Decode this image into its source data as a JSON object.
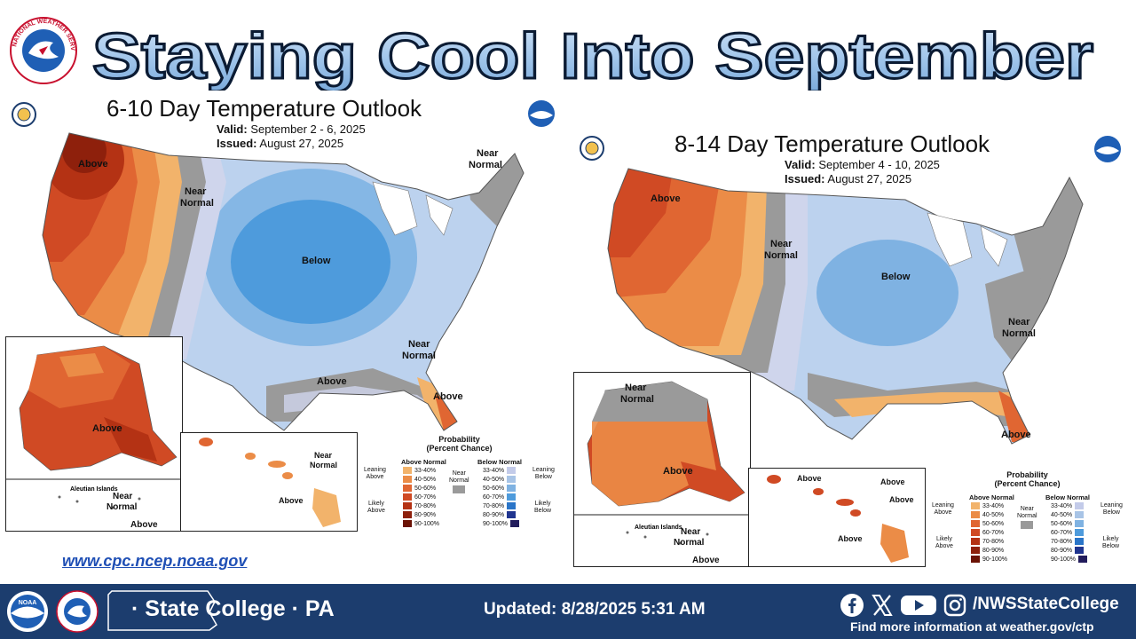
{
  "header": {
    "title": "Staying Cool Into September",
    "nws_logo_text": "NATIONAL WEATHER SERVICE"
  },
  "outlooks": [
    {
      "title": "6-10 Day Temperature Outlook",
      "valid_label": "Valid:",
      "valid": "September 2 - 6, 2025",
      "issued_label": "Issued:",
      "issued": "August 27, 2025",
      "labels": {
        "above_nw": "Above",
        "near_west": "Near",
        "near_west2": "Normal",
        "below_central": "Below",
        "near_ne": "Near",
        "near_ne2": "Normal",
        "near_se": "Near",
        "near_se2": "Normal",
        "above_gulf": "Above",
        "above_fl": "Above",
        "ak_above": "Above",
        "aleutian": "Aleutian Islands",
        "ak_near": "Near",
        "ak_near2": "Normal",
        "ak_above2": "Above",
        "hi_near": "Near",
        "hi_near2": "Normal",
        "hi_above": "Above"
      }
    },
    {
      "title": "8-14 Day Temperature Outlook",
      "valid_label": "Valid:",
      "valid": "September 4 - 10, 2025",
      "issued_label": "Issued:",
      "issued": "August 27, 2025",
      "labels": {
        "above_nw": "Above",
        "near_plains": "Near",
        "near_plains2": "Normal",
        "below_central": "Below",
        "near_east": "Near",
        "near_east2": "Normal",
        "above_fl": "Above",
        "ak_near": "Near",
        "ak_near2": "Normal",
        "ak_above": "Above",
        "aleutian": "Aleutian Islands",
        "ak_near_b": "Near",
        "ak_near_b2": "Normal",
        "ak_above2": "Above",
        "hi_above1": "Above",
        "hi_above2": "Above",
        "hi_above3": "Above",
        "hi_above4": "Above"
      }
    }
  ],
  "legend": {
    "title": "Probability",
    "subtitle": "(Percent Chance)",
    "above_header": "Above Normal",
    "below_header": "Below Normal",
    "near_label": "Near",
    "near_label2": "Normal",
    "leaning_above": "Leaning",
    "leaning_above2": "Above",
    "likely_above": "Likely",
    "likely_above2": "Above",
    "leaning_below": "Leaning",
    "leaning_below2": "Below",
    "likely_below": "Likely",
    "likely_below2": "Below",
    "ranges": [
      "33-40%",
      "40-50%",
      "50-60%",
      "60-70%",
      "70-80%",
      "80-90%",
      "90-100%"
    ],
    "above_colors": [
      "#f2b36b",
      "#eb8c47",
      "#e06632",
      "#d04a24",
      "#b43214",
      "#8e200c",
      "#6b1205"
    ],
    "below_colors": [
      "#c3cbe9",
      "#a8c4e6",
      "#7fb2e2",
      "#4e9bdc",
      "#2a75c8",
      "#20358f",
      "#221c5c"
    ],
    "near_color": "#9a9a9a"
  },
  "url": "www.cpc.ncep.noaa.gov",
  "footer": {
    "location": "· State College · PA",
    "updated": "Updated: 8/28/2025 5:31 AM",
    "handle": "/NWSStateCollege",
    "more_info": "Find more information at weather.gov/ctp",
    "noaa_text": "NOAA"
  },
  "icons": [
    "facebook-icon",
    "x-icon",
    "youtube-icon",
    "instagram-icon",
    "noaa-logo",
    "nws-logo",
    "doc-seal",
    "pennsylvania-outline"
  ]
}
